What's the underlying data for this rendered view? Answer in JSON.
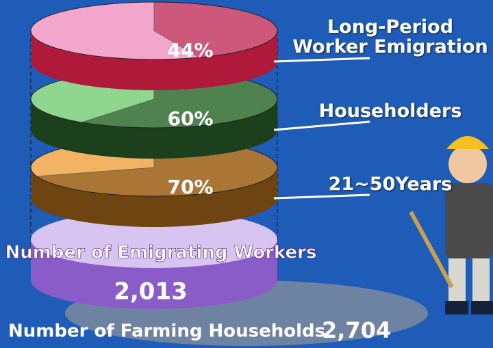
{
  "chart_data": {
    "type": "stacked-pie",
    "layers": [
      {
        "label": "Long-Period Worker Emigration",
        "value": 44,
        "value_label": "44%",
        "color": "#b01a3a",
        "top_color": "#f2a6cc"
      },
      {
        "label": "Householders",
        "value": 60,
        "value_label": "60%",
        "color": "#1c3f1c",
        "top_color": "#8fd68f"
      },
      {
        "label": "21~50Years",
        "value": 70,
        "value_label": "70%",
        "color": "#6e4410",
        "top_color": "#f2b464"
      }
    ],
    "workers": {
      "label": "Number of Emigrating Workers",
      "value": 2013,
      "value_label": "2,013",
      "color": "#8a5cc8",
      "top_color": "#d8c4f0"
    },
    "households": {
      "label": "Number of Farming Households",
      "value": 2704,
      "value_label": "2,704",
      "color": "#7c8a9c"
    }
  }
}
